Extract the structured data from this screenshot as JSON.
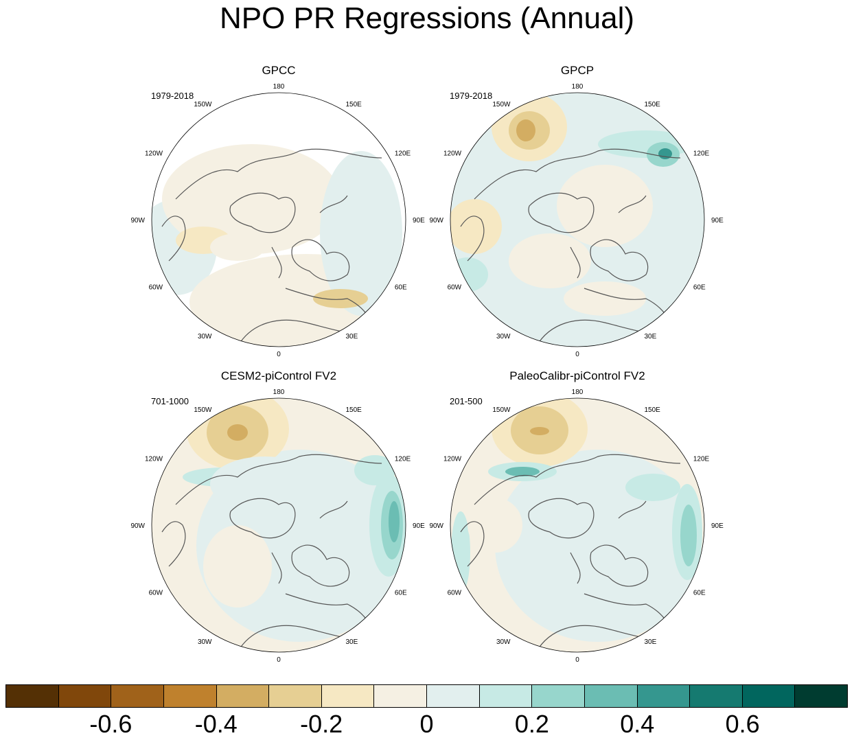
{
  "title": "NPO PR Regressions (Annual)",
  "longitude_labels": {
    "top": "180",
    "bottom": "0",
    "left": [
      "150W",
      "120W",
      "90W",
      "60W",
      "30W"
    ],
    "right": [
      "150E",
      "120E",
      "90E",
      "60E",
      "30E"
    ]
  },
  "panels": [
    {
      "title": "GPCC",
      "period": "1979-2018"
    },
    {
      "title": "GPCP",
      "period": "1979-2018"
    },
    {
      "title": "CESM2-piControl FV2",
      "period": "701-1000"
    },
    {
      "title": "PaleoCalibr-piControl FV2",
      "period": "201-500"
    }
  ],
  "colorbar": {
    "colors": [
      "#543005",
      "#80470b",
      "#a0621a",
      "#bf812d",
      "#d3ad62",
      "#e6cf93",
      "#f6e8c3",
      "#f5f0e3",
      "#e2efee",
      "#c7eae5",
      "#97d6cc",
      "#6bbdb3",
      "#35978f",
      "#157a70",
      "#01665e",
      "#003c30"
    ],
    "tick_values": [
      -0.6,
      -0.4,
      -0.2,
      0,
      0.2,
      0.4,
      0.6
    ],
    "tick_labels": [
      "-0.6",
      "-0.4",
      "-0.2",
      "0",
      "0.2",
      "0.4",
      "0.6"
    ]
  }
}
